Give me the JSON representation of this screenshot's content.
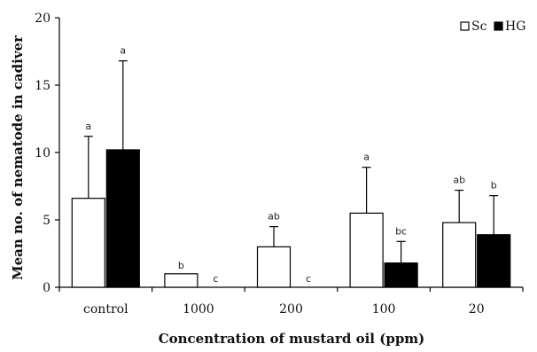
{
  "chart_data": {
    "type": "bar",
    "title": "",
    "xlabel": "Concentration of mustard oil (ppm)",
    "ylabel": "Mean no. of nematode in cadiver",
    "ylim": [
      0,
      20
    ],
    "yticks": [
      "0",
      "5",
      "10",
      "15",
      "20"
    ],
    "categories": [
      "control",
      "1000",
      "200",
      "100",
      "20"
    ],
    "legend_position": "top-right",
    "grid": false,
    "series": [
      {
        "name": "Sc",
        "color": "#ffffff",
        "values": [
          6.6,
          1.0,
          3.0,
          5.5,
          4.8
        ],
        "errors": [
          4.6,
          0,
          1.5,
          3.4,
          2.4
        ],
        "sig": [
          "a",
          "b",
          "ab",
          "a",
          "ab"
        ]
      },
      {
        "name": "HG",
        "color": "#000000",
        "values": [
          10.2,
          0,
          0,
          1.8,
          3.9
        ],
        "errors": [
          6.6,
          0,
          0,
          1.6,
          2.9
        ],
        "sig": [
          "a",
          "c",
          "c",
          "bc",
          "b"
        ]
      }
    ]
  }
}
